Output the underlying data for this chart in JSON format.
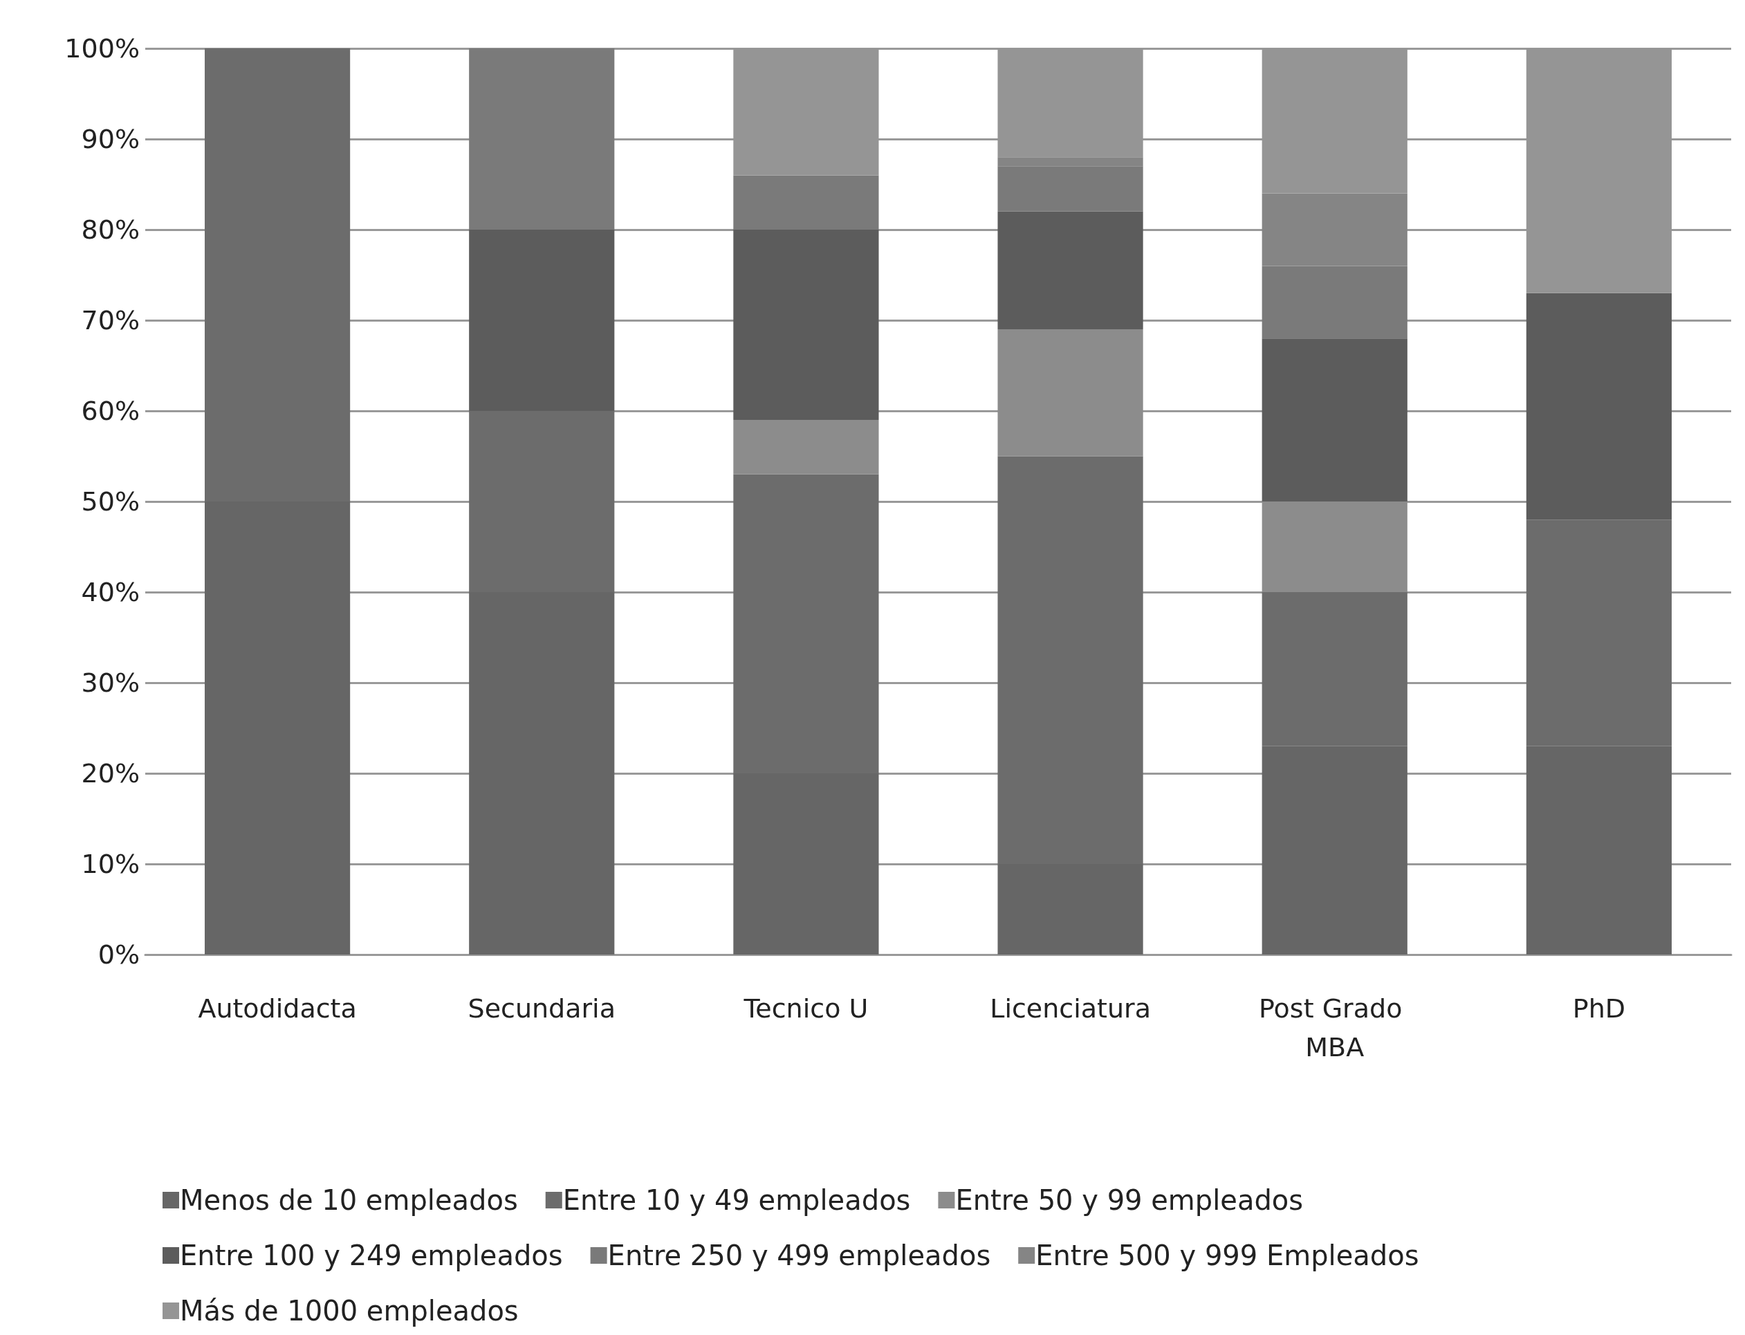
{
  "chart_data": {
    "type": "bar",
    "stacked": true,
    "categories": [
      "Autodidacta",
      "Secundaria",
      "Tecnico U",
      "Licenciatura",
      "Post Grado MBA",
      "PhD"
    ],
    "series": [
      {
        "name": "Menos de 10 empleados",
        "color": "#666666",
        "values": [
          50,
          40,
          20,
          10,
          23,
          23
        ]
      },
      {
        "name": "Entre 10 y 49 empleados",
        "color": "#6c6c6c",
        "values": [
          50,
          20,
          33,
          45,
          17,
          25
        ]
      },
      {
        "name": "Entre 50 y 99 empleados",
        "color": "#8c8c8c",
        "values": [
          0,
          0,
          6,
          14,
          10,
          0
        ]
      },
      {
        "name": "Entre 100 y 249 empleados",
        "color": "#5c5c5c",
        "values": [
          0,
          20,
          21,
          13,
          18,
          25
        ]
      },
      {
        "name": "Entre 250 y 499 empleados",
        "color": "#7a7a7a",
        "values": [
          0,
          20,
          6,
          5,
          8,
          0
        ]
      },
      {
        "name": "Entre 500 y 999 Empleados",
        "color": "#858585",
        "values": [
          0,
          0,
          0,
          1,
          8,
          0
        ]
      },
      {
        "name": "Más de 1000 empleados",
        "color": "#959595",
        "values": [
          0,
          0,
          14,
          12,
          16,
          27
        ]
      }
    ],
    "ylim": [
      0,
      100
    ],
    "yticks": [
      {
        "value": 0,
        "label": "0%"
      },
      {
        "value": 10,
        "label": "10%"
      },
      {
        "value": 20,
        "label": "20%"
      },
      {
        "value": 30,
        "label": "30%"
      },
      {
        "value": 40,
        "label": "40%"
      },
      {
        "value": 50,
        "label": "50%"
      },
      {
        "value": 60,
        "label": "60%"
      },
      {
        "value": 70,
        "label": "70%"
      },
      {
        "value": 80,
        "label": "80%"
      },
      {
        "value": 90,
        "label": "90%"
      },
      {
        "value": 100,
        "label": "100%"
      }
    ],
    "grid": "y",
    "legend": "bottom"
  }
}
